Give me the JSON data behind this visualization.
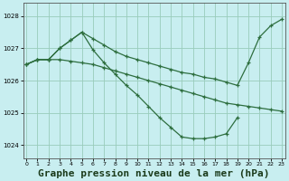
{
  "background_color": "#c8eef0",
  "grid_color": "#99ccbb",
  "line_color": "#2d6e3e",
  "title": "Graphe pression niveau de la mer (hPa)",
  "title_fontsize": 8,
  "title_bold": true,
  "ylim": [
    1023.6,
    1028.4
  ],
  "yticks": [
    1024,
    1025,
    1026,
    1027,
    1028
  ],
  "xlim": [
    -0.3,
    23.3
  ],
  "xticks": [
    0,
    1,
    2,
    3,
    4,
    5,
    6,
    7,
    8,
    9,
    10,
    11,
    12,
    13,
    14,
    15,
    16,
    17,
    18,
    19,
    20,
    21,
    22,
    23
  ],
  "line1_x": [
    0,
    1,
    2,
    3,
    4,
    5,
    6,
    7,
    8,
    9,
    10,
    11,
    12,
    13,
    14,
    15,
    16,
    17,
    18,
    19,
    20,
    21,
    22,
    23
  ],
  "line1_y": [
    1026.5,
    1026.65,
    1026.65,
    1027.0,
    1027.25,
    1027.5,
    1027.3,
    1027.1,
    1026.9,
    1026.75,
    1026.65,
    1026.55,
    1026.45,
    1026.35,
    1026.25,
    1026.2,
    1026.1,
    1026.05,
    1025.95,
    1025.85,
    1026.55,
    1027.35,
    1027.7,
    1027.9
  ],
  "line2_x": [
    0,
    1,
    2,
    3,
    4,
    5,
    6,
    7,
    8,
    9,
    10,
    11,
    12,
    13,
    14,
    15,
    16,
    17,
    18,
    19
  ],
  "line2_y": [
    1026.5,
    1026.65,
    1026.65,
    1027.0,
    1027.25,
    1027.5,
    1026.95,
    1026.55,
    1026.2,
    1025.85,
    1025.55,
    1025.2,
    1024.85,
    1024.55,
    1024.25,
    1024.2,
    1024.2,
    1024.25,
    1024.35,
    1024.85
  ],
  "line3_x": [
    0,
    1,
    2,
    3,
    4,
    5,
    6,
    7,
    8,
    9,
    10,
    11,
    12,
    13,
    14,
    15,
    16,
    17,
    18,
    19,
    20,
    21,
    22,
    23
  ],
  "line3_y": [
    1026.5,
    1026.65,
    1026.65,
    1026.65,
    1026.6,
    1026.55,
    1026.5,
    1026.4,
    1026.3,
    1026.2,
    1026.1,
    1026.0,
    1025.9,
    1025.8,
    1025.7,
    1025.6,
    1025.5,
    1025.4,
    1025.3,
    1025.25,
    1025.2,
    1025.15,
    1025.1,
    1025.05
  ]
}
